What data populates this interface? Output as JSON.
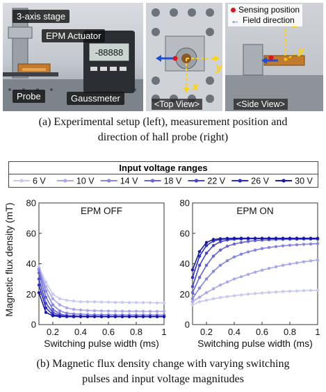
{
  "photos": {
    "setup": {
      "label_stage": "3-axis stage",
      "label_actuator": "EPM Actuator",
      "label_probe": "Probe",
      "label_gaussmeter": "Gaussmeter",
      "meter_reading": "-88888"
    },
    "top_view": {
      "label": "<Top View>",
      "axis_x": "x",
      "axis_y": "y"
    },
    "side_view": {
      "label": "<Side View>",
      "axis_z": "z",
      "axis_y": "y"
    },
    "legend": {
      "sensing": "Sensing position",
      "field": "Field direction"
    },
    "colors": {
      "sensing": "#e0141e",
      "field": "#1f4fd8",
      "axes": "#ffd400"
    }
  },
  "caption_a_line1": "(a) Experimental setup (left), measurement position and",
  "caption_a_line2": "direction of hall probe (right)",
  "caption_b_line1": "(b) Magnetic flux density change with varying switching",
  "caption_b_line2": "pulses and input voltage magnitudes",
  "legend_title": "Input voltage ranges",
  "chart_data": [
    {
      "type": "line",
      "title": "EPM OFF",
      "xlabel": "Switching pulse width (ms)",
      "ylabel": "Magnetic flux density (mT)",
      "xlim": [
        0.1,
        1.0
      ],
      "ylim": [
        0,
        80
      ],
      "xticks": [
        0.2,
        0.4,
        0.6,
        0.8,
        1
      ],
      "yticks": [
        0,
        20,
        40,
        60,
        80
      ],
      "x": [
        0.1,
        0.15,
        0.2,
        0.25,
        0.3,
        0.35,
        0.4,
        0.45,
        0.5,
        0.55,
        0.6,
        0.65,
        0.7,
        0.75,
        0.8,
        0.85,
        0.9,
        0.95,
        1.0
      ],
      "series": [
        {
          "name": "6 V",
          "color": "#c9c9f2",
          "values": [
            38,
            28,
            20,
            17,
            16,
            15.5,
            15,
            15,
            15,
            14.8,
            14.8,
            14.6,
            14.6,
            14.5,
            14.5,
            14.4,
            14.4,
            14.3,
            14.3
          ]
        },
        {
          "name": "10 V",
          "color": "#a8a8eb",
          "values": [
            37,
            25,
            17,
            13,
            11,
            10,
            9.6,
            9.3,
            9.1,
            9,
            8.9,
            8.9,
            8.8,
            8.8,
            8.8,
            8.7,
            8.7,
            8.7,
            8.7
          ]
        },
        {
          "name": "14 V",
          "color": "#8585e2",
          "values": [
            36,
            22,
            13,
            9,
            7.5,
            7,
            6.8,
            6.6,
            6.5,
            6.5,
            6.5,
            6.4,
            6.4,
            6.4,
            6.4,
            6.4,
            6.4,
            6.4,
            6.4
          ]
        },
        {
          "name": "18 V",
          "color": "#6565d9",
          "values": [
            34,
            18,
            10,
            7,
            6,
            5.8,
            5.6,
            5.6,
            5.6,
            5.5,
            5.5,
            5.5,
            5.5,
            5.5,
            5.5,
            5.5,
            5.5,
            5.5,
            5.5
          ]
        },
        {
          "name": "22 V",
          "color": "#4545d0",
          "values": [
            30,
            14,
            8,
            6,
            5.5,
            5.4,
            5.3,
            5.3,
            5.3,
            5.3,
            5.3,
            5.3,
            5.3,
            5.3,
            5.3,
            5.3,
            5.3,
            5.3,
            5.3
          ]
        },
        {
          "name": "26 V",
          "color": "#2a2ac6",
          "values": [
            26,
            11,
            6.5,
            5.6,
            5.3,
            5.2,
            5.2,
            5.2,
            5.2,
            5.2,
            5.2,
            5.2,
            5.2,
            5.2,
            5.2,
            5.2,
            5.2,
            5.2,
            5.2
          ]
        },
        {
          "name": "30 V",
          "color": "#1a1aa8",
          "values": [
            21,
            8,
            5.8,
            5.3,
            5.2,
            5.2,
            5.2,
            5.2,
            5.2,
            5.2,
            5.2,
            5.2,
            5.2,
            5.2,
            5.2,
            5.2,
            5.2,
            5.2,
            5.2
          ]
        }
      ]
    },
    {
      "type": "line",
      "title": "EPM ON",
      "xlabel": "Switching pulse width (ms)",
      "ylabel": "",
      "xlim": [
        0.1,
        1.0
      ],
      "ylim": [
        0,
        80
      ],
      "xticks": [
        0.2,
        0.4,
        0.6,
        0.8,
        1
      ],
      "yticks": [
        0,
        20,
        40,
        60,
        80
      ],
      "x": [
        0.1,
        0.15,
        0.2,
        0.25,
        0.3,
        0.35,
        0.4,
        0.45,
        0.5,
        0.55,
        0.6,
        0.65,
        0.7,
        0.75,
        0.8,
        0.85,
        0.9,
        0.95,
        1.0
      ],
      "series": [
        {
          "name": "6 V",
          "color": "#c9c9f2",
          "values": [
            13,
            15,
            16,
            17,
            17.8,
            18.4,
            19,
            19.5,
            20,
            20.4,
            20.8,
            21.1,
            21.4,
            21.7,
            21.9,
            22.1,
            22.3,
            22.5,
            22.6
          ]
        },
        {
          "name": "10 V",
          "color": "#a8a8eb",
          "values": [
            15,
            18,
            21,
            23.5,
            26,
            28,
            30,
            31.5,
            33,
            34.5,
            35.8,
            37,
            38,
            39,
            39.8,
            40.6,
            41.3,
            41.9,
            42.5
          ]
        },
        {
          "name": "14 V",
          "color": "#8585e2",
          "values": [
            17,
            24,
            30,
            35,
            39,
            42,
            44.5,
            46.3,
            47.8,
            49,
            50,
            50.7,
            51.3,
            51.8,
            52.2,
            52.5,
            52.8,
            53,
            53.2
          ]
        },
        {
          "name": "18 V",
          "color": "#6565d9",
          "values": [
            21,
            31,
            39,
            45,
            49,
            51.5,
            53,
            54,
            54.7,
            55.2,
            55.5,
            55.7,
            55.9,
            56,
            56.1,
            56.1,
            56.2,
            56.2,
            56.2
          ]
        },
        {
          "name": "22 V",
          "color": "#4545d0",
          "values": [
            25,
            39,
            47,
            52,
            54.5,
            55.6,
            56.1,
            56.3,
            56.4,
            56.5,
            56.5,
            56.5,
            56.5,
            56.5,
            56.5,
            56.5,
            56.5,
            56.5,
            56.5
          ]
        },
        {
          "name": "26 V",
          "color": "#2a2ac6",
          "values": [
            31,
            45,
            52,
            55,
            56,
            56.4,
            56.5,
            56.6,
            56.6,
            56.6,
            56.6,
            56.6,
            56.6,
            56.6,
            56.6,
            56.6,
            56.6,
            56.6,
            56.6
          ]
        },
        {
          "name": "30 V",
          "color": "#1a1aa8",
          "values": [
            36,
            48,
            54,
            56,
            56.5,
            56.7,
            56.8,
            56.8,
            56.8,
            56.8,
            56.8,
            56.8,
            56.8,
            56.8,
            56.8,
            56.8,
            56.8,
            56.8,
            56.8
          ]
        }
      ]
    }
  ]
}
